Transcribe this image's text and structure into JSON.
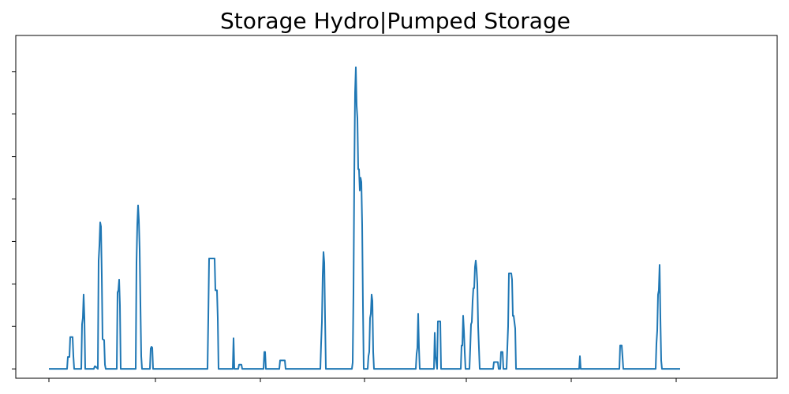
{
  "chart_data": {
    "type": "line",
    "title": "Storage Hydro|Pumped Storage",
    "xlabel": "",
    "ylabel": "",
    "x_tick_labels": [],
    "y_tick_labels": [],
    "xlim": [
      0,
      877
    ],
    "ylim": [
      -0.22,
      7.85
    ],
    "x_ticks": [
      0,
      135,
      268,
      400,
      529,
      662,
      795
    ],
    "y_ticks": [
      0,
      1,
      2,
      3,
      4,
      5,
      6,
      7
    ],
    "grid": false,
    "legend": "none",
    "colors": {
      "line": "#1f77b4",
      "axes": "#000000",
      "background": "#ffffff"
    },
    "series": [
      {
        "values": [
          [
            0,
            0
          ],
          [
            23,
            0
          ],
          [
            24,
            0.28
          ],
          [
            26,
            0.28
          ],
          [
            27,
            0.75
          ],
          [
            30,
            0.75
          ],
          [
            31,
            0.3
          ],
          [
            32,
            0
          ],
          [
            41,
            0
          ],
          [
            42,
            1.05
          ],
          [
            43,
            1.2
          ],
          [
            44,
            1.75
          ],
          [
            45,
            1.2
          ],
          [
            46,
            0
          ],
          [
            57,
            0
          ],
          [
            58,
            0.06
          ],
          [
            59,
            0.06
          ],
          [
            62,
            0
          ],
          [
            63,
            2.55
          ],
          [
            64,
            2.9
          ],
          [
            65,
            3.45
          ],
          [
            66,
            3.35
          ],
          [
            67,
            2.2
          ],
          [
            68,
            0.7
          ],
          [
            70,
            0.68
          ],
          [
            71,
            0.1
          ],
          [
            72,
            0
          ],
          [
            86,
            0
          ],
          [
            87,
            1.8
          ],
          [
            88,
            1.85
          ],
          [
            89,
            2.1
          ],
          [
            90,
            1.5
          ],
          [
            91,
            0
          ],
          [
            110,
            0
          ],
          [
            111,
            2.5
          ],
          [
            112,
            3.4
          ],
          [
            113,
            3.85
          ],
          [
            114,
            3.5
          ],
          [
            115,
            2.8
          ],
          [
            116,
            1.5
          ],
          [
            117,
            0.3
          ],
          [
            118,
            0
          ],
          [
            128,
            0
          ],
          [
            129,
            0.48
          ],
          [
            130,
            0.52
          ],
          [
            131,
            0.5
          ],
          [
            132,
            0
          ],
          [
            201,
            0
          ],
          [
            202,
            1.2
          ],
          [
            203,
            2.6
          ],
          [
            205,
            2.6
          ],
          [
            209,
            2.6
          ],
          [
            210,
            2.6
          ],
          [
            211,
            1.85
          ],
          [
            213,
            1.85
          ],
          [
            214,
            1.2
          ],
          [
            215,
            0
          ],
          [
            233,
            0
          ],
          [
            234,
            0.72
          ],
          [
            235,
            0
          ],
          [
            240,
            0
          ],
          [
            241,
            0.1
          ],
          [
            244,
            0.1
          ],
          [
            245,
            0
          ],
          [
            272,
            0
          ],
          [
            273,
            0.4
          ],
          [
            274,
            0.4
          ],
          [
            275,
            0
          ],
          [
            292,
            0
          ],
          [
            293,
            0.2
          ],
          [
            299,
            0.2
          ],
          [
            300,
            0
          ],
          [
            344,
            0
          ],
          [
            345,
            0.6
          ],
          [
            346,
            1.1
          ],
          [
            347,
            2.2
          ],
          [
            348,
            2.75
          ],
          [
            349,
            2.5
          ],
          [
            350,
            1.2
          ],
          [
            351,
            0
          ],
          [
            384,
            0
          ],
          [
            385,
            0.15
          ],
          [
            386,
            1.8
          ],
          [
            387,
            4.5
          ],
          [
            388,
            6.5
          ],
          [
            389,
            7.1
          ],
          [
            390,
            6.2
          ],
          [
            391,
            5.9
          ],
          [
            392,
            4.7
          ],
          [
            393,
            4.7
          ],
          [
            394,
            4.2
          ],
          [
            395,
            4.5
          ],
          [
            396,
            4.4
          ],
          [
            397,
            3.4
          ],
          [
            398,
            1.5
          ],
          [
            399,
            0
          ],
          [
            404,
            0
          ],
          [
            405,
            0.3
          ],
          [
            406,
            0.4
          ],
          [
            407,
            1.2
          ],
          [
            408,
            1.3
          ],
          [
            409,
            1.75
          ],
          [
            410,
            1.6
          ],
          [
            411,
            0.4
          ],
          [
            412,
            0
          ],
          [
            465,
            0
          ],
          [
            466,
            0.35
          ],
          [
            467,
            0.5
          ],
          [
            468,
            1.3
          ],
          [
            469,
            0.5
          ],
          [
            470,
            0
          ],
          [
            488,
            0
          ],
          [
            489,
            0.85
          ],
          [
            490,
            0.3
          ],
          [
            491,
            0.15
          ],
          [
            492,
            0
          ],
          [
            493,
            1.12
          ],
          [
            496,
            1.12
          ],
          [
            497,
            0
          ],
          [
            522,
            0
          ],
          [
            523,
            0.55
          ],
          [
            524,
            0.55
          ],
          [
            525,
            1.25
          ],
          [
            526,
            0.9
          ],
          [
            527,
            0.4
          ],
          [
            528,
            0
          ],
          [
            533,
            0
          ],
          [
            534,
            0.5
          ],
          [
            535,
            1.05
          ],
          [
            536,
            1.1
          ],
          [
            537,
            1.6
          ],
          [
            538,
            1.9
          ],
          [
            539,
            1.9
          ],
          [
            540,
            2.4
          ],
          [
            541,
            2.55
          ],
          [
            542,
            2.35
          ],
          [
            543,
            2.0
          ],
          [
            544,
            1.0
          ],
          [
            545,
            0.5
          ],
          [
            546,
            0
          ],
          [
            563,
            0
          ],
          [
            564,
            0.16
          ],
          [
            569,
            0.16
          ],
          [
            570,
            0
          ],
          [
            572,
            0
          ],
          [
            573,
            0.4
          ],
          [
            575,
            0.4
          ],
          [
            576,
            0
          ],
          [
            580,
            0
          ],
          [
            581,
            0.5
          ],
          [
            582,
            1.0
          ],
          [
            583,
            2.25
          ],
          [
            584,
            2.25
          ],
          [
            586,
            2.25
          ],
          [
            587,
            2.1
          ],
          [
            588,
            1.25
          ],
          [
            589,
            1.25
          ],
          [
            590,
            1.1
          ],
          [
            591,
            0.95
          ],
          [
            592,
            0
          ],
          [
            672,
            0
          ],
          [
            673,
            0.3
          ],
          [
            674,
            0
          ],
          [
            723,
            0
          ],
          [
            724,
            0.55
          ],
          [
            726,
            0.55
          ],
          [
            727,
            0.28
          ],
          [
            728,
            0
          ],
          [
            769,
            0
          ],
          [
            770,
            0.6
          ],
          [
            771,
            0.9
          ],
          [
            772,
            1.75
          ],
          [
            773,
            1.85
          ],
          [
            774,
            2.45
          ],
          [
            775,
            1.2
          ],
          [
            776,
            0.2
          ],
          [
            777,
            0
          ],
          [
            800,
            0
          ]
        ]
      }
    ]
  }
}
